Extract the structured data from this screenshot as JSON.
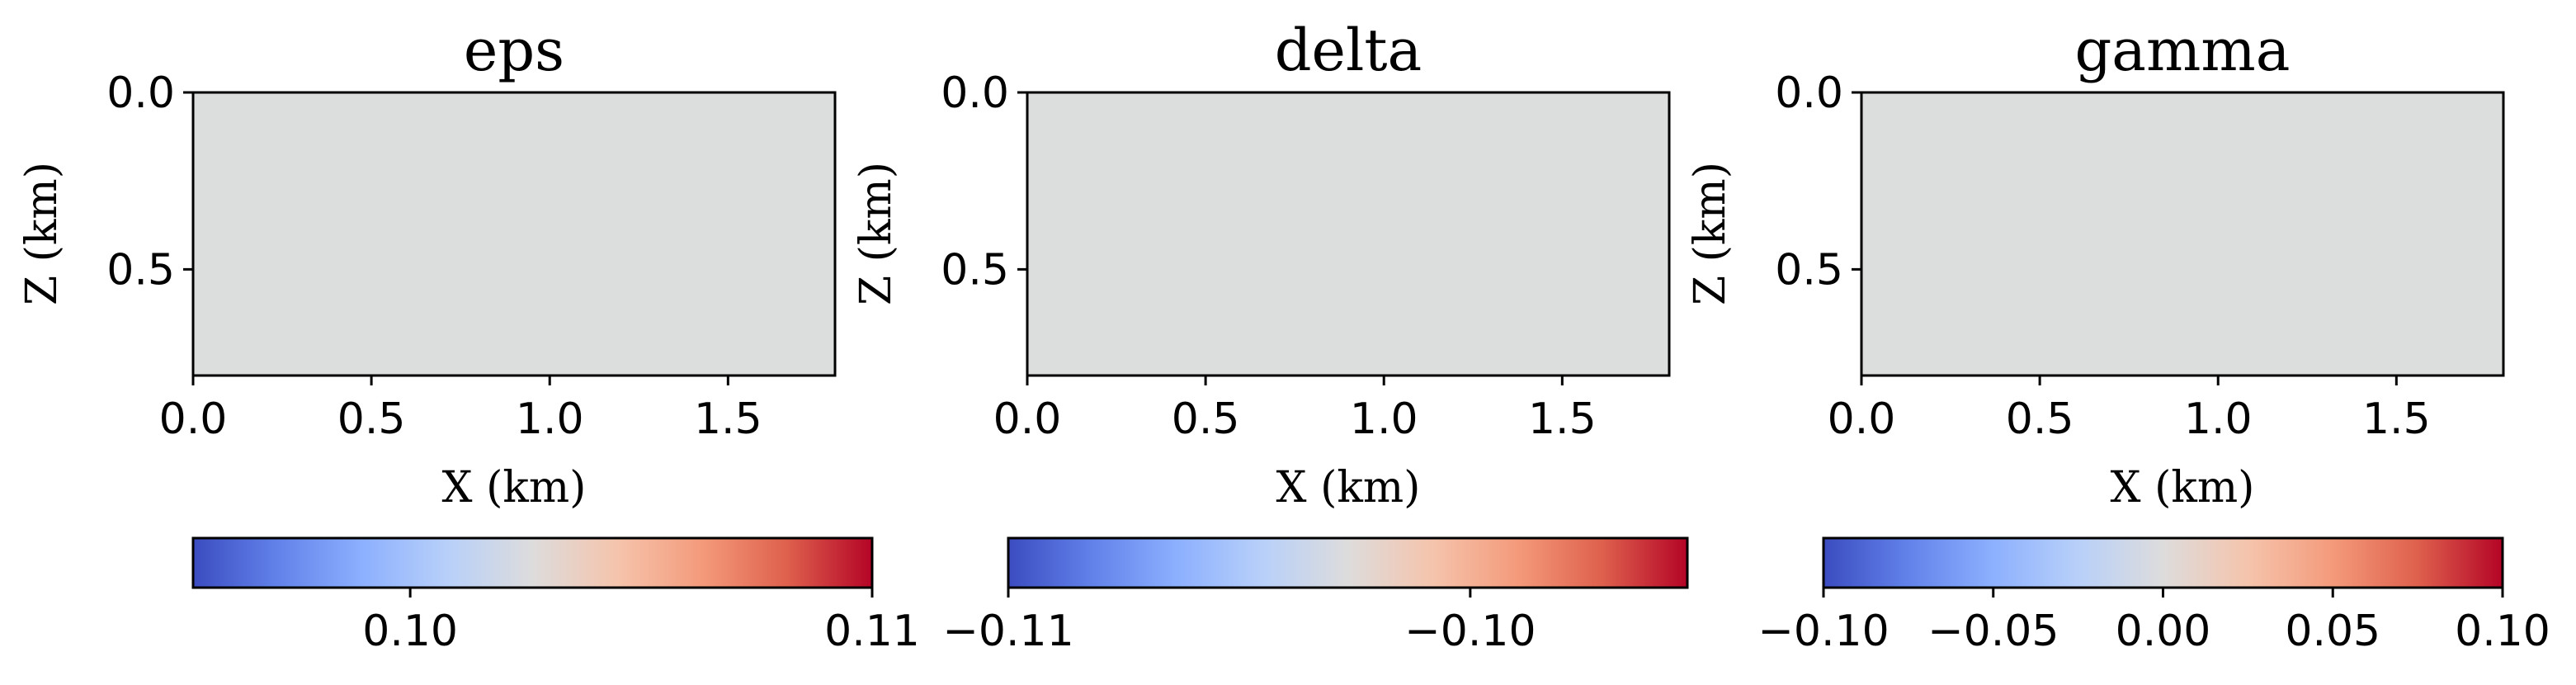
{
  "chart_data": [
    {
      "type": "heatmap",
      "title": "eps",
      "xlabel": "X (km)",
      "ylabel": "Z (km)",
      "xlim": [
        0.0,
        1.8
      ],
      "ylim": [
        0.8,
        0.0
      ],
      "xticks": [
        "0.0",
        "0.5",
        "1.0",
        "1.5"
      ],
      "yticks": [
        "0.0",
        "0.5"
      ],
      "field_color": "#dcdddd",
      "colorbar": {
        "orientation": "horizontal",
        "colormap": "coolwarm",
        "range": [
          0.0953,
          0.11
        ],
        "ticks": [
          {
            "value": 0.1,
            "label": "0.10"
          },
          {
            "value": 0.11,
            "label": "0.11"
          }
        ]
      }
    },
    {
      "type": "heatmap",
      "title": "delta",
      "xlabel": "X (km)",
      "ylabel": "Z (km)",
      "xlim": [
        0.0,
        1.8
      ],
      "ylim": [
        0.8,
        0.0
      ],
      "xticks": [
        "0.0",
        "0.5",
        "1.0",
        "1.5"
      ],
      "yticks": [
        "0.0",
        "0.5"
      ],
      "field_color": "#dcdddd",
      "colorbar": {
        "orientation": "horizontal",
        "colormap": "coolwarm",
        "range": [
          -0.11,
          -0.0953
        ],
        "ticks": [
          {
            "value": -0.11,
            "label": "−0.11"
          },
          {
            "value": -0.1,
            "label": "−0.10"
          }
        ]
      }
    },
    {
      "type": "heatmap",
      "title": "gamma",
      "xlabel": "X (km)",
      "ylabel": "Z (km)",
      "xlim": [
        0.0,
        1.8
      ],
      "ylim": [
        0.8,
        0.0
      ],
      "xticks": [
        "0.0",
        "0.5",
        "1.0",
        "1.5"
      ],
      "yticks": [
        "0.0",
        "0.5"
      ],
      "field_color": "#dcdddd",
      "colorbar": {
        "orientation": "horizontal",
        "colormap": "coolwarm",
        "range": [
          -0.1,
          0.1
        ],
        "ticks": [
          {
            "value": -0.1,
            "label": "−0.10"
          },
          {
            "value": -0.05,
            "label": "−0.05"
          },
          {
            "value": 0.0,
            "label": "0.00"
          },
          {
            "value": 0.05,
            "label": "0.05"
          },
          {
            "value": 0.1,
            "label": "0.10"
          }
        ]
      }
    }
  ]
}
